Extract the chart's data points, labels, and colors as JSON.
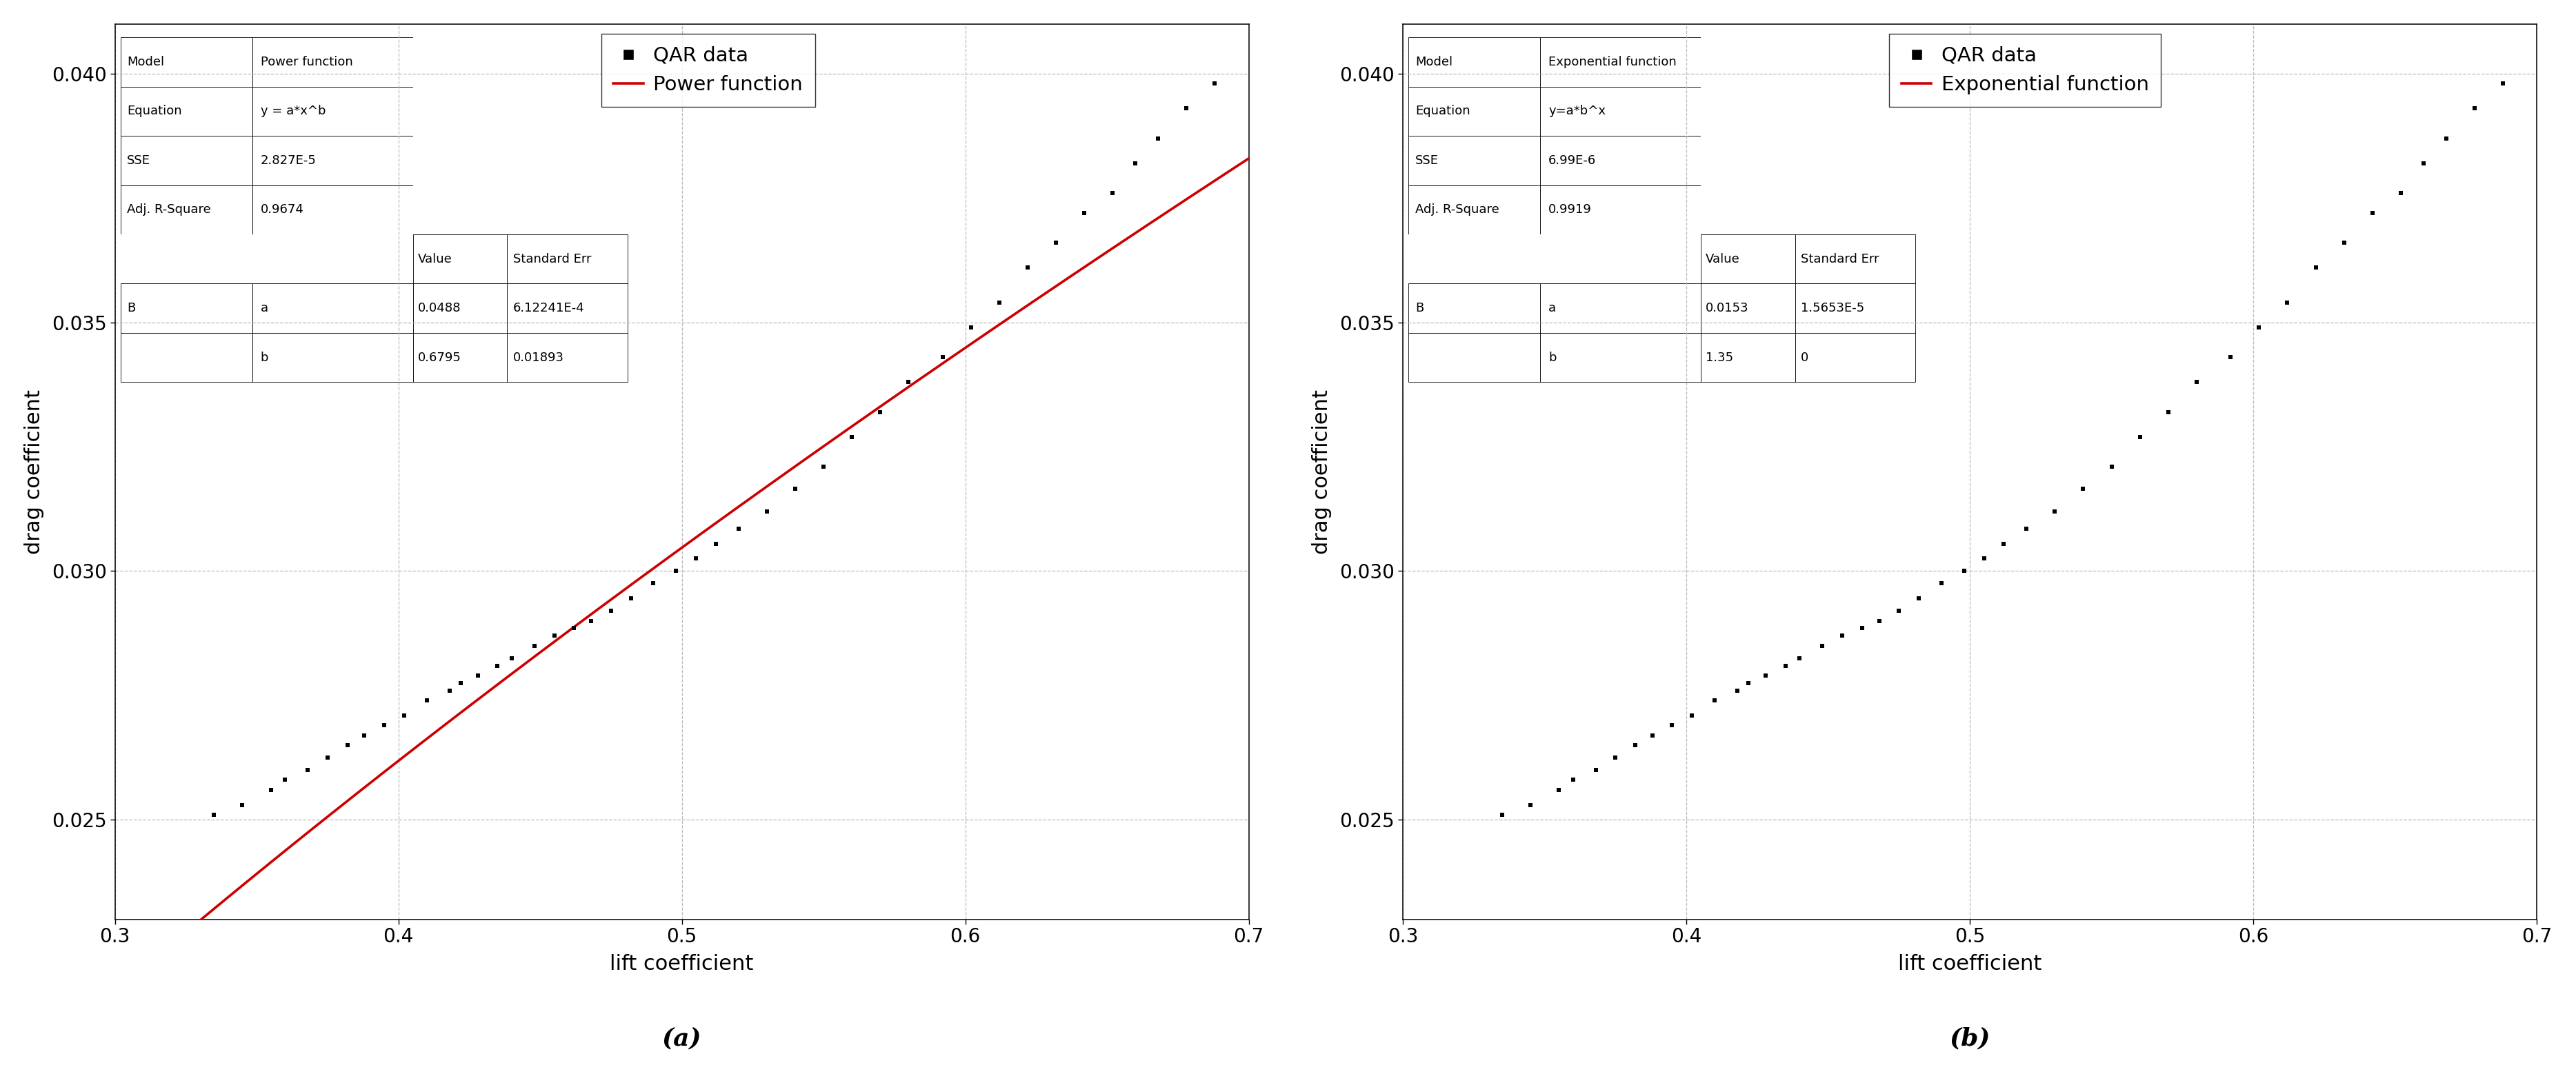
{
  "scatter_x": [
    0.335,
    0.345,
    0.355,
    0.36,
    0.368,
    0.375,
    0.382,
    0.388,
    0.395,
    0.402,
    0.41,
    0.418,
    0.422,
    0.428,
    0.435,
    0.44,
    0.448,
    0.455,
    0.462,
    0.468,
    0.475,
    0.482,
    0.49,
    0.498,
    0.505,
    0.512,
    0.52,
    0.53,
    0.54,
    0.55,
    0.56,
    0.57,
    0.58,
    0.592,
    0.602,
    0.612,
    0.622,
    0.632,
    0.642,
    0.652,
    0.66,
    0.668,
    0.678,
    0.688
  ],
  "scatter_y": [
    0.0251,
    0.0253,
    0.0256,
    0.0258,
    0.026,
    0.02625,
    0.0265,
    0.0267,
    0.0269,
    0.0271,
    0.0274,
    0.0276,
    0.02775,
    0.0279,
    0.0281,
    0.02825,
    0.0285,
    0.0287,
    0.02885,
    0.029,
    0.0292,
    0.02945,
    0.02975,
    0.03,
    0.03025,
    0.03055,
    0.03085,
    0.0312,
    0.03165,
    0.0321,
    0.0327,
    0.0332,
    0.0338,
    0.0343,
    0.0349,
    0.0354,
    0.0361,
    0.0366,
    0.0372,
    0.0376,
    0.0382,
    0.0387,
    0.0393,
    0.0398
  ],
  "power_a": 0.0488,
  "power_b": 0.6795,
  "exp_a": 0.0153,
  "exp_b": 1.35,
  "xlim": [
    0.3,
    0.7
  ],
  "ylim": [
    0.023,
    0.041
  ],
  "xticks": [
    0.3,
    0.4,
    0.5,
    0.6,
    0.7
  ],
  "yticks": [
    0.025,
    0.03,
    0.035,
    0.04
  ],
  "xlabel": "lift coefficient",
  "ylabel": "drag coefficient",
  "scatter_color": "#000000",
  "line_color": "#cc0000",
  "background_color": "#ffffff",
  "grid_color": "#bbbbbb",
  "label_a": "(a)",
  "label_b": "(b)",
  "legend_scatter": "QAR data",
  "legend_power": "Power function",
  "legend_exp": "Exponential function",
  "table1": [
    [
      "Model",
      "Power function",
      "",
      ""
    ],
    [
      "Equation",
      "y = a*x^b",
      "",
      ""
    ],
    [
      "SSE",
      "2.827E-5",
      "",
      ""
    ],
    [
      "Adj. R-Square",
      "0.9674",
      "",
      ""
    ],
    [
      "",
      "",
      "Value",
      "Standard Err"
    ],
    [
      "B",
      "a",
      "0.0488",
      "6.12241E-4"
    ],
    [
      "",
      "b",
      "0.6795",
      "0.01893"
    ]
  ],
  "table2": [
    [
      "Model",
      "Exponential function",
      "",
      ""
    ],
    [
      "Equation",
      "y=a*b^x",
      "",
      ""
    ],
    [
      "SSE",
      "6.99E-6",
      "",
      ""
    ],
    [
      "Adj. R-Square",
      "0.9919",
      "",
      ""
    ],
    [
      "",
      "",
      "Value",
      "Standard Err"
    ],
    [
      "B",
      "a",
      "0.0153",
      "1.5653E-5"
    ],
    [
      "",
      "b",
      "1.35",
      "0"
    ]
  ],
  "table_fontsize": 13,
  "legend_fontsize": 21,
  "axis_label_fontsize": 22,
  "tick_fontsize": 20,
  "caption_fontsize": 26
}
